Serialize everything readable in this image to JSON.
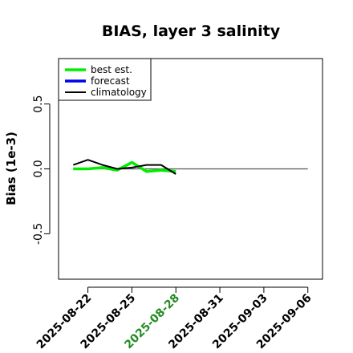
{
  "chart_data": {
    "type": "line",
    "title": "BIAS, layer 3 salinity",
    "xlabel": "",
    "ylabel": "Bias (1e-3)",
    "ylim": [
      -0.85,
      0.85
    ],
    "xlim": [
      "2025-08-20",
      "2025-09-07"
    ],
    "y_ticks": [
      "-0.5",
      "0.0",
      "0.5"
    ],
    "x_ticks": [
      "2025-08-22",
      "2025-08-25",
      "2025-08-28",
      "2025-08-31",
      "2025-09-03",
      "2025-09-06"
    ],
    "x_tick_colors": [
      "#000000",
      "#000000",
      "#228B22",
      "#000000",
      "#000000",
      "#000000"
    ],
    "grid": false,
    "legend_position": "top-left",
    "reference_line": {
      "y": 0.0,
      "x_start": "2025-08-21",
      "x_end": "2025-09-06",
      "color": "#555555"
    },
    "series": [
      {
        "name": "best est.",
        "color": "#00ee00",
        "x": [
          "2025-08-21",
          "2025-08-22",
          "2025-08-23",
          "2025-08-24",
          "2025-08-25",
          "2025-08-26",
          "2025-08-27",
          "2025-08-28"
        ],
        "values": [
          0.0,
          0.0,
          0.01,
          -0.01,
          0.05,
          -0.02,
          -0.01,
          -0.02
        ]
      },
      {
        "name": "forecast",
        "color": "#0000ee",
        "x": [],
        "values": []
      },
      {
        "name": "climatology",
        "color": "#000000",
        "x": [
          "2025-08-21",
          "2025-08-22",
          "2025-08-23",
          "2025-08-24",
          "2025-08-25",
          "2025-08-26",
          "2025-08-27",
          "2025-08-28"
        ],
        "values": [
          0.03,
          0.07,
          0.03,
          0.0,
          0.01,
          0.03,
          0.03,
          -0.04
        ]
      }
    ]
  }
}
